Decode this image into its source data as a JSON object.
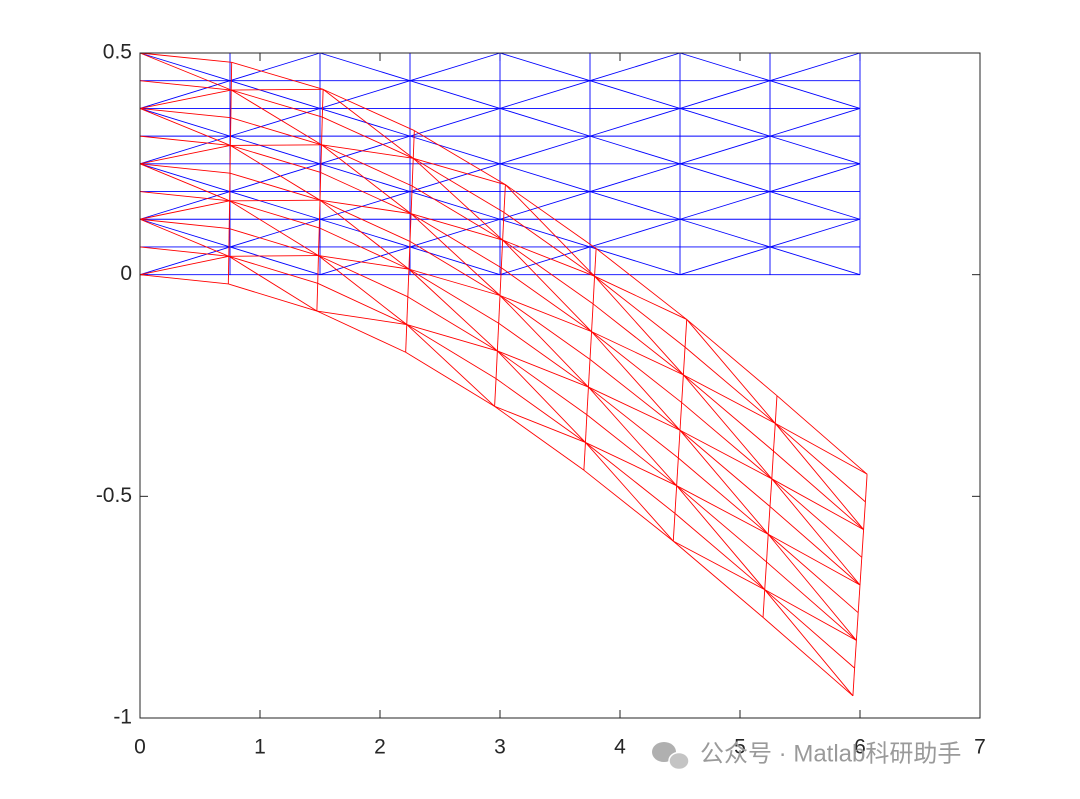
{
  "chart_data": {
    "type": "mesh",
    "xlim": [
      0,
      7
    ],
    "ylim": [
      -1,
      0.5
    ],
    "xticks": [
      0,
      1,
      2,
      3,
      4,
      5,
      6,
      7
    ],
    "yticks": [
      -1,
      -0.5,
      0,
      0.5
    ],
    "watermark": "公众号 · Matlab科研助手",
    "meshes": [
      {
        "color": "#0000ff",
        "x": [
          0,
          0.75,
          1.5,
          2.25,
          3,
          3.75,
          4.5,
          5.25,
          6
        ],
        "y": [
          0,
          0.0625,
          0.125,
          0.1875,
          0.25,
          0.3125,
          0.375,
          0.4375,
          0.5
        ]
      },
      {
        "color": "#ff0000",
        "x": [
          [
            0,
            0.736,
            1.474,
            2.214,
            2.955,
            3.699,
            4.444,
            5.192,
            5.941
          ],
          [
            0,
            0.74,
            1.481,
            2.223,
            2.967,
            3.712,
            4.458,
            5.206,
            5.955
          ],
          [
            0,
            0.743,
            1.487,
            2.232,
            2.978,
            3.724,
            4.472,
            5.221,
            5.97
          ],
          [
            0,
            0.747,
            1.494,
            2.241,
            2.989,
            3.737,
            4.486,
            5.235,
            5.985
          ],
          [
            0,
            0.75,
            1.5,
            2.25,
            3,
            3.75,
            4.5,
            5.25,
            6
          ],
          [
            0,
            0.753,
            1.506,
            2.259,
            3.011,
            3.763,
            4.514,
            5.265,
            6.015
          ],
          [
            0,
            0.757,
            1.513,
            2.268,
            3.022,
            3.776,
            4.528,
            5.279,
            6.03
          ],
          [
            0,
            0.76,
            1.519,
            2.277,
            3.033,
            3.788,
            4.542,
            5.294,
            6.045
          ],
          [
            0,
            0.764,
            1.526,
            2.286,
            3.045,
            3.801,
            4.556,
            5.308,
            6.059
          ]
        ],
        "y": [
          [
            0,
            -0.021,
            -0.082,
            -0.175,
            -0.297,
            -0.441,
            -0.601,
            -0.773,
            -0.95
          ],
          [
            0.0625,
            0.0415,
            -0.0195,
            -0.1125,
            -0.2345,
            -0.3785,
            -0.5385,
            -0.7105,
            -0.8875
          ],
          [
            0.125,
            0.104,
            0.043,
            -0.05,
            -0.172,
            -0.316,
            -0.476,
            -0.648,
            -0.825
          ],
          [
            0.1875,
            0.1665,
            0.1055,
            0.0125,
            -0.1095,
            -0.2535,
            -0.4135,
            -0.5855,
            -0.7625
          ],
          [
            0.25,
            0.229,
            0.168,
            0.075,
            -0.047,
            -0.191,
            -0.351,
            -0.523,
            -0.7
          ],
          [
            0.3125,
            0.2915,
            0.2305,
            0.1375,
            0.0155,
            -0.1285,
            -0.2885,
            -0.4605,
            -0.6375
          ],
          [
            0.375,
            0.354,
            0.293,
            0.2,
            0.078,
            -0.066,
            -0.226,
            -0.398,
            -0.575
          ],
          [
            0.4375,
            0.4165,
            0.3555,
            0.2625,
            0.1405,
            -0.0035,
            -0.1635,
            -0.3355,
            -0.5125
          ],
          [
            0.5,
            0.479,
            0.418,
            0.325,
            0.203,
            0.059,
            -0.101,
            -0.273,
            -0.45
          ]
        ]
      }
    ]
  }
}
